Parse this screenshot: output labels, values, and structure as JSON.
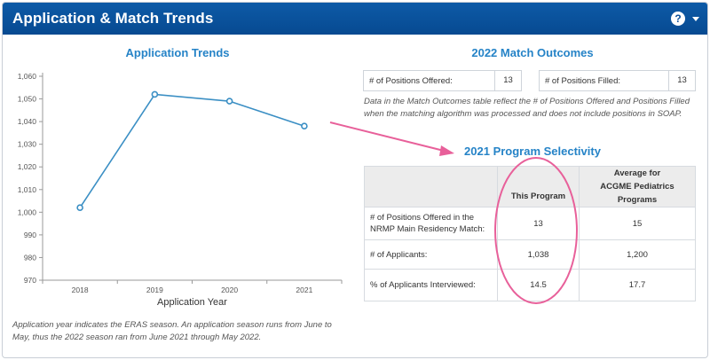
{
  "header": {
    "title": "Application & Match Trends",
    "help_icon": "?",
    "menu_icon": "caret-down-icon"
  },
  "left": {
    "title": "Application Trends",
    "footnote": "Application year indicates the ERAS season. An application season runs from June to May, thus the 2022 season ran from June 2021 through May 2022."
  },
  "chart_data": {
    "type": "line",
    "title": "Application Trends",
    "xlabel": "Application Year",
    "ylabel": "",
    "categories": [
      "2018",
      "2019",
      "2020",
      "2021"
    ],
    "values": [
      1002,
      1052,
      1049,
      1038
    ],
    "ylim": [
      970,
      1060
    ],
    "yticks": [
      970,
      980,
      990,
      1000,
      1010,
      1020,
      1030,
      1040,
      1050,
      1060
    ],
    "ytick_labels": [
      "970",
      "980",
      "990",
      "1,000",
      "1,010",
      "1,020",
      "1,030",
      "1,040",
      "1,050",
      "1,060"
    ],
    "grid": false,
    "color": "#3b8fc4"
  },
  "match": {
    "title": "2022 Match Outcomes",
    "positions_offered_label": "# of Positions Offered:",
    "positions_offered_value": "13",
    "positions_filled_label": "# of Positions Filled:",
    "positions_filled_value": "13",
    "note": "Data in the Match Outcomes table reflect the # of Positions Offered and Positions Filled when the matching algorithm was processed and does not include positions in SOAP."
  },
  "selectivity": {
    "title": "2021 Program Selectivity",
    "headers": [
      "",
      "This Program",
      "Average for ACGME Pediatrics Programs"
    ],
    "rows": [
      {
        "label": "# of Positions Offered in the NRMP Main Residency Match:",
        "program": "13",
        "average": "15"
      },
      {
        "label": "# of Applicants:",
        "program": "1,038",
        "average": "1,200"
      },
      {
        "label": "% of Applicants Interviewed:",
        "program": "14.5",
        "average": "17.7"
      }
    ]
  },
  "annotation_color": "#e8609a"
}
